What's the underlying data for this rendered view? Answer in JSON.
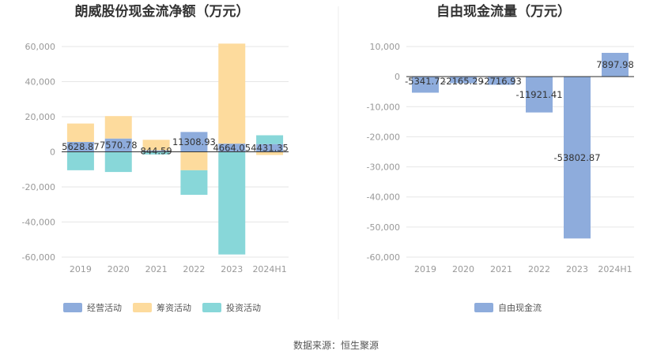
{
  "chart_data": [
    {
      "type": "bar",
      "stacked": true,
      "title": "朗威股份现金流净额（万元）",
      "categories": [
        "2019",
        "2020",
        "2021",
        "2022",
        "2023",
        "2024H1"
      ],
      "y_ticks": [
        "60,000",
        "40,000",
        "20,000",
        "0",
        "-20,000",
        "-40,000",
        "-60,000"
      ],
      "ylim": [
        -60000,
        60000
      ],
      "grid": true,
      "legend_position": "bottom-left",
      "series": [
        {
          "name": "经营活动",
          "color": "#8eacdc",
          "values": [
            5628.87,
            7570.78,
            844.59,
            11308.93,
            4664.05,
            4431.35
          ]
        },
        {
          "name": "筹资活动",
          "color": "#fddb9d",
          "values": [
            10500,
            12800,
            6000,
            -10500,
            57000,
            -1800
          ]
        },
        {
          "name": "投资活动",
          "color": "#88d7d9",
          "values": [
            -10500,
            -11500,
            -1500,
            -14000,
            -58500,
            5000
          ]
        }
      ],
      "data_labels": [
        "5628.87",
        "7570.78",
        "844.59",
        "11308.93",
        "4664.05",
        "4431.35"
      ]
    },
    {
      "type": "bar",
      "title": "自由现金流量（万元）",
      "categories": [
        "2019",
        "2020",
        "2021",
        "2022",
        "2023",
        "2024H1"
      ],
      "y_ticks": [
        "10,000",
        "0",
        "-10,000",
        "-20,000",
        "-30,000",
        "-40,000",
        "-50,000",
        "-60,000"
      ],
      "ylim": [
        -60000,
        10000
      ],
      "grid": true,
      "legend_position": "bottom-center",
      "series": [
        {
          "name": "自由现金流",
          "color": "#8eacdc",
          "values": [
            -5341.72,
            -2165.29,
            -2716.93,
            -11921.41,
            -53802.87,
            7897.98
          ]
        }
      ],
      "data_labels": [
        "-5341.72",
        "-2165.29",
        "-2716.93",
        "-11921.41",
        "-53802.87",
        "7897.98"
      ]
    }
  ],
  "footer": {
    "source": "数据来源：恒生聚源"
  }
}
